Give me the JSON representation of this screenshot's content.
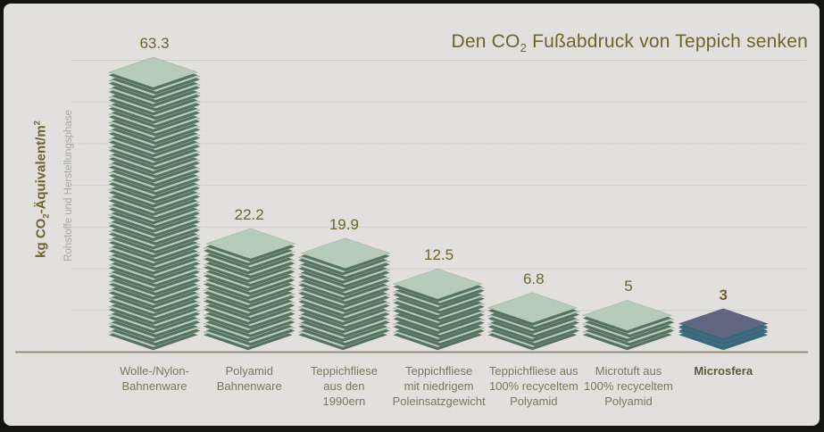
{
  "title_parts": {
    "pre": "Den CO",
    "sub": "2",
    "post": " Fußabdruck von Teppich senken"
  },
  "y_axis": {
    "label_pre": "kg CO",
    "label_sub": "2",
    "label_mid": "-Äquivalent/m",
    "label_sup": "2",
    "secondary": "Rohstoffe und Herstellungsphase"
  },
  "chart_data": {
    "type": "bar",
    "title": "Den CO2 Fußabdruck von Teppich senken",
    "ylabel": "kg CO2-Äquivalent/m2",
    "ylabel_secondary": "Rohstoffe und Herstellungsphase",
    "xlabel": "",
    "ylim": [
      0,
      70
    ],
    "grid": true,
    "grid_step": 10,
    "legend": "none",
    "bar_style": "isometric-tile-stack",
    "categories": [
      "Wolle-/Nylon-Bahnenware",
      "Polyamid Bahnenware",
      "Teppichfliese aus den 1990ern",
      "Teppichfliese mit niedrigem Poleinsatzgewicht",
      "Teppichfliese aus 100% recyceltem Polyamid",
      "Microtuft aus 100% recyceltem Polyamid",
      "Microsfera"
    ],
    "values": [
      63.3,
      22.2,
      19.9,
      12.5,
      6.8,
      5,
      3
    ],
    "bars": [
      {
        "category_lines": [
          "Wolle-/Nylon-",
          "Bahnenware"
        ],
        "value": 63.3,
        "value_label": "63.3",
        "style": "green",
        "emphasis": false
      },
      {
        "category_lines": [
          "Polyamid",
          "Bahnenware"
        ],
        "value": 22.2,
        "value_label": "22.2",
        "style": "green",
        "emphasis": false
      },
      {
        "category_lines": [
          "Teppichfliese",
          "aus den",
          "1990ern"
        ],
        "value": 19.9,
        "value_label": "19.9",
        "style": "green",
        "emphasis": false
      },
      {
        "category_lines": [
          "Teppichfliese",
          "mit niedrigem",
          "Poleinsatzgewicht"
        ],
        "value": 12.5,
        "value_label": "12.5",
        "style": "green",
        "emphasis": false
      },
      {
        "category_lines": [
          "Teppichfliese aus",
          "100% recyceltem",
          "Polyamid"
        ],
        "value": 6.8,
        "value_label": "6.8",
        "style": "green",
        "emphasis": false
      },
      {
        "category_lines": [
          "Microtuft aus",
          "100% recyceltem",
          "Polyamid"
        ],
        "value": 5,
        "value_label": "5",
        "style": "green",
        "emphasis": false
      },
      {
        "category_lines": [
          "Microsfera"
        ],
        "value": 3,
        "value_label": "3",
        "style": "blue",
        "emphasis": true
      }
    ]
  },
  "colors": {
    "panel_background": "#e3e2df",
    "frame": "#141412",
    "title_text": "#6d6228",
    "value_text": "#6d6228",
    "category_text": "#7c745c",
    "category_text_emphasis": "#5e563c",
    "secondary_axis_text": "#a7a6a0",
    "gridline": "#d0cfc9",
    "baseline": "#958e76",
    "tile_green_top": "#b7cdb9",
    "tile_green_side": "#54705f",
    "tile_blue_top": "#5f6480",
    "tile_blue_side": "#2c6d7d"
  }
}
